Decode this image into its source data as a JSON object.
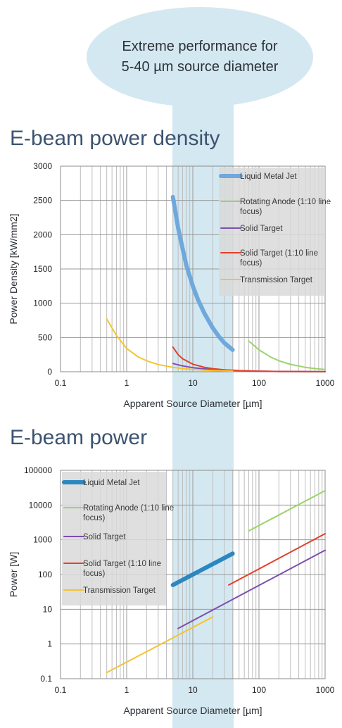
{
  "callout": {
    "line1": "Extreme performance for",
    "line2": "5-40 µm source diameter"
  },
  "chart_data": [
    {
      "type": "line",
      "title": "E-beam power density",
      "xlabel": "Apparent Source Diameter [µm]",
      "ylabel": "Power Density [kW/mm2]",
      "x_scale": "log",
      "y_scale": "linear",
      "xlim": [
        0.1,
        1000
      ],
      "ylim": [
        0,
        3000
      ],
      "x_ticks": [
        "0.1",
        "1",
        "10",
        "100",
        "1000"
      ],
      "y_ticks": [
        "0",
        "500",
        "1000",
        "1500",
        "2000",
        "2500",
        "3000"
      ],
      "grid": true,
      "legend_position": "top-right",
      "highlight_range_x": [
        5,
        40
      ],
      "series": [
        {
          "name": "Liquid Metal Jet",
          "color": "#6fa8dc",
          "width": "thick",
          "x": [
            5,
            6,
            7,
            8,
            10,
            12,
            15,
            20,
            25,
            30,
            40
          ],
          "y": [
            2550,
            2100,
            1800,
            1550,
            1250,
            1050,
            850,
            640,
            510,
            420,
            320
          ]
        },
        {
          "name": "Rotating Anode (1:10 line focus)",
          "color": "#9bd36b",
          "width": "thin",
          "x": [
            70,
            100,
            150,
            200,
            300,
            500,
            700,
            1000
          ],
          "y": [
            450,
            320,
            215,
            160,
            108,
            65,
            46,
            33
          ]
        },
        {
          "name": "Solid Target",
          "color": "#7b4fb0",
          "width": "thin",
          "x": [
            5,
            7,
            10,
            15,
            20,
            30,
            40,
            60,
            100,
            200,
            500,
            1000
          ],
          "y": [
            120,
            85,
            60,
            42,
            32,
            22,
            17,
            12,
            8,
            4,
            2,
            1
          ]
        },
        {
          "name": "Solid Target (1:10 line focus)",
          "color": "#e0412b",
          "width": "thin",
          "x": [
            5,
            6,
            7,
            10,
            15,
            20,
            30,
            50,
            100,
            200,
            500,
            1000
          ],
          "y": [
            360,
            250,
            190,
            110,
            65,
            45,
            28,
            16,
            8,
            4,
            2,
            1
          ]
        },
        {
          "name": "Transmission Target",
          "color": "#f4c430",
          "width": "thin",
          "x": [
            0.5,
            0.7,
            1,
            1.5,
            2,
            3,
            5,
            7,
            10,
            15,
            20,
            30,
            40
          ],
          "y": [
            770,
            530,
            340,
            215,
            160,
            105,
            65,
            47,
            33,
            23,
            17,
            12,
            9
          ]
        }
      ]
    },
    {
      "type": "line",
      "title": "E-beam power",
      "xlabel": "Apparent Source Diameter [µm]",
      "ylabel": "Power [W]",
      "x_scale": "log",
      "y_scale": "log",
      "xlim": [
        0.1,
        1000
      ],
      "ylim": [
        0.1,
        100000
      ],
      "x_ticks": [
        "0.1",
        "1",
        "10",
        "100",
        "1000"
      ],
      "y_ticks": [
        "0.1",
        "1",
        "10",
        "100",
        "1000",
        "10000",
        "100000"
      ],
      "grid": true,
      "legend_position": "top-left",
      "highlight_range_x": [
        5,
        40
      ],
      "series": [
        {
          "name": "Liquid Metal Jet",
          "color": "#2b87c2",
          "width": "thick",
          "x": [
            5,
            40
          ],
          "y": [
            50,
            400
          ]
        },
        {
          "name": "Rotating Anode (1:10 line focus)",
          "color": "#9bd36b",
          "width": "thin",
          "x": [
            70,
            1000
          ],
          "y": [
            1800,
            26000
          ]
        },
        {
          "name": "Solid Target",
          "color": "#7b4fb0",
          "width": "thin",
          "x": [
            6,
            1000
          ],
          "y": [
            2.8,
            500
          ]
        },
        {
          "name": "Solid Target (1:10 line focus)",
          "color": "#e0412b",
          "width": "thin",
          "x": [
            35,
            1000
          ],
          "y": [
            50,
            1500
          ]
        },
        {
          "name": "Transmission Target",
          "color": "#f4c430",
          "width": "thin",
          "x": [
            0.5,
            20
          ],
          "y": [
            0.15,
            6
          ]
        }
      ]
    }
  ]
}
